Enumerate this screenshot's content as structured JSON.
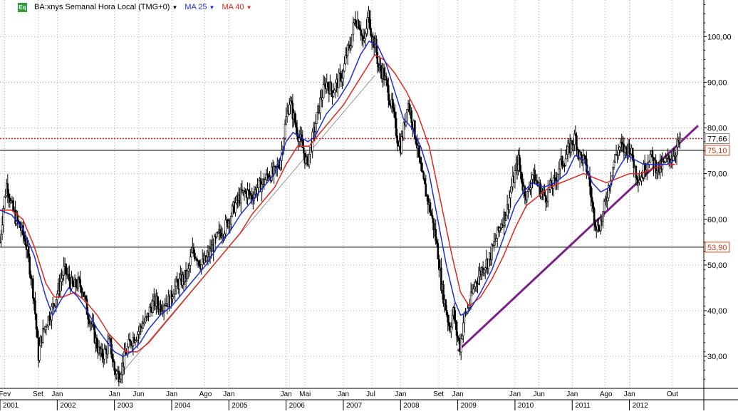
{
  "chart_data": {
    "type": "candlestick",
    "title": "BA:xnys Semanal Hora Local (TMG+0)",
    "indicators": [
      {
        "name": "MA 25",
        "color": "#1f2fd6"
      },
      {
        "name": "MA 40",
        "color": "#e0261e"
      }
    ],
    "colors": {
      "price": "#000000",
      "ma25": "#1f2fd6",
      "ma40": "#e0261e",
      "trendline": "#7b1e8c",
      "dotted_level": "#c21c1c"
    },
    "ylim": [
      23,
      108
    ],
    "y_ticks": [
      "30,00",
      "40,00",
      "50,00",
      "60,00",
      "70,00",
      "80,00",
      "90,00",
      "100,00"
    ],
    "y_tick_values": [
      30,
      40,
      50,
      60,
      70,
      80,
      90,
      100
    ],
    "month_labels": [
      {
        "label": "Fev",
        "t": 2001.08
      },
      {
        "label": "Set",
        "t": 2001.67
      },
      {
        "label": "Jan",
        "t": 2002.0
      },
      {
        "label": "Jan",
        "t": 2003.0
      },
      {
        "label": "Jun",
        "t": 2003.42
      },
      {
        "label": "Jan",
        "t": 2004.0
      },
      {
        "label": "Ago",
        "t": 2004.58
      },
      {
        "label": "Jan",
        "t": 2005.0
      },
      {
        "label": "Jan",
        "t": 2006.0
      },
      {
        "label": "Mai",
        "t": 2006.33
      },
      {
        "label": "Jan",
        "t": 2007.0
      },
      {
        "label": "Jul",
        "t": 2007.5
      },
      {
        "label": "Jan",
        "t": 2008.0
      },
      {
        "label": "Set",
        "t": 2008.67
      },
      {
        "label": "Jan",
        "t": 2009.0
      },
      {
        "label": "Jan",
        "t": 2010.0
      },
      {
        "label": "Jun",
        "t": 2010.42
      },
      {
        "label": "Jan",
        "t": 2011.0
      },
      {
        "label": "Ago",
        "t": 2011.58
      },
      {
        "label": "Jan",
        "t": 2012.0
      },
      {
        "label": "Out",
        "t": 2012.75
      }
    ],
    "year_labels": [
      "2001",
      "2002",
      "2003",
      "2004",
      "2005",
      "2006",
      "2007",
      "2008",
      "2009",
      "2010",
      "2011",
      "2012"
    ],
    "horizontal_levels": [
      {
        "value": 77.66,
        "label": "77,66",
        "style": "dotted"
      },
      {
        "value": 75.1,
        "label": "75,10",
        "style": "solid"
      },
      {
        "value": 53.9,
        "label": "53,90",
        "style": "solid"
      }
    ],
    "last_price": {
      "value": 77.66,
      "label": "77,66"
    },
    "trendlines": [
      {
        "from": {
          "t": 2009.0,
          "y": 31.2
        },
        "to": {
          "t": 2013.2,
          "y": 80.5
        },
        "color": "#7b1e8c"
      },
      {
        "from": {
          "t": 2003.0,
          "y": 24.5
        },
        "to": {
          "t": 2007.55,
          "y": 91.5
        },
        "color": "#808080"
      }
    ],
    "price_path": [
      [
        2001.0,
        55
      ],
      [
        2001.06,
        63
      ],
      [
        2001.12,
        68
      ],
      [
        2001.2,
        63
      ],
      [
        2001.28,
        60
      ],
      [
        2001.36,
        58
      ],
      [
        2001.45,
        55
      ],
      [
        2001.55,
        47
      ],
      [
        2001.6,
        42
      ],
      [
        2001.67,
        30
      ],
      [
        2001.72,
        34
      ],
      [
        2001.8,
        37
      ],
      [
        2001.9,
        40
      ],
      [
        2001.98,
        43
      ],
      [
        2002.05,
        46
      ],
      [
        2002.12,
        49
      ],
      [
        2002.2,
        47
      ],
      [
        2002.28,
        45
      ],
      [
        2002.36,
        46
      ],
      [
        2002.44,
        45
      ],
      [
        2002.52,
        40
      ],
      [
        2002.6,
        37
      ],
      [
        2002.68,
        33
      ],
      [
        2002.76,
        30
      ],
      [
        2002.84,
        31
      ],
      [
        2002.92,
        33
      ],
      [
        2003.0,
        27
      ],
      [
        2003.08,
        26
      ],
      [
        2003.16,
        29
      ],
      [
        2003.24,
        32
      ],
      [
        2003.32,
        34
      ],
      [
        2003.4,
        35
      ],
      [
        2003.48,
        37
      ],
      [
        2003.56,
        38
      ],
      [
        2003.64,
        41
      ],
      [
        2003.72,
        42
      ],
      [
        2003.8,
        41
      ],
      [
        2003.88,
        42
      ],
      [
        2003.96,
        42
      ],
      [
        2004.04,
        45
      ],
      [
        2004.12,
        46
      ],
      [
        2004.2,
        47
      ],
      [
        2004.28,
        48
      ],
      [
        2004.36,
        53
      ],
      [
        2004.44,
        52
      ],
      [
        2004.52,
        50
      ],
      [
        2004.6,
        51
      ],
      [
        2004.68,
        53
      ],
      [
        2004.76,
        55
      ],
      [
        2004.84,
        57
      ],
      [
        2004.92,
        58
      ],
      [
        2005.0,
        60
      ],
      [
        2005.1,
        63
      ],
      [
        2005.2,
        65
      ],
      [
        2005.3,
        66
      ],
      [
        2005.4,
        65
      ],
      [
        2005.5,
        67
      ],
      [
        2005.6,
        68
      ],
      [
        2005.7,
        70
      ],
      [
        2005.8,
        70
      ],
      [
        2005.9,
        73
      ],
      [
        2006.0,
        82
      ],
      [
        2006.06,
        86
      ],
      [
        2006.12,
        83
      ],
      [
        2006.2,
        79
      ],
      [
        2006.28,
        76
      ],
      [
        2006.36,
        72
      ],
      [
        2006.42,
        75
      ],
      [
        2006.5,
        80
      ],
      [
        2006.6,
        86
      ],
      [
        2006.7,
        90
      ],
      [
        2006.8,
        88
      ],
      [
        2006.9,
        90
      ],
      [
        2007.0,
        92
      ],
      [
        2007.05,
        96
      ],
      [
        2007.12,
        98
      ],
      [
        2007.2,
        104
      ],
      [
        2007.28,
        103
      ],
      [
        2007.36,
        98
      ],
      [
        2007.44,
        105
      ],
      [
        2007.5,
        100
      ],
      [
        2007.56,
        98
      ],
      [
        2007.62,
        93
      ],
      [
        2007.7,
        92
      ],
      [
        2007.78,
        88
      ],
      [
        2007.86,
        84
      ],
      [
        2007.94,
        78
      ],
      [
        2008.0,
        76
      ],
      [
        2008.06,
        80
      ],
      [
        2008.12,
        86
      ],
      [
        2008.2,
        82
      ],
      [
        2008.28,
        77
      ],
      [
        2008.36,
        70
      ],
      [
        2008.44,
        66
      ],
      [
        2008.52,
        62
      ],
      [
        2008.6,
        57
      ],
      [
        2008.66,
        52
      ],
      [
        2008.72,
        45
      ],
      [
        2008.8,
        40
      ],
      [
        2008.86,
        36
      ],
      [
        2008.92,
        40
      ],
      [
        2008.98,
        35
      ],
      [
        2009.04,
        32
      ],
      [
        2009.1,
        38
      ],
      [
        2009.16,
        40
      ],
      [
        2009.22,
        42
      ],
      [
        2009.3,
        46
      ],
      [
        2009.38,
        48
      ],
      [
        2009.46,
        50
      ],
      [
        2009.54,
        51
      ],
      [
        2009.62,
        54
      ],
      [
        2009.7,
        57
      ],
      [
        2009.78,
        60
      ],
      [
        2009.86,
        62
      ],
      [
        2009.94,
        67
      ],
      [
        2010.0,
        70
      ],
      [
        2010.06,
        73
      ],
      [
        2010.14,
        67
      ],
      [
        2010.22,
        65
      ],
      [
        2010.3,
        70
      ],
      [
        2010.38,
        68
      ],
      [
        2010.46,
        66
      ],
      [
        2010.54,
        65
      ],
      [
        2010.62,
        67
      ],
      [
        2010.7,
        68
      ],
      [
        2010.78,
        72
      ],
      [
        2010.86,
        73
      ],
      [
        2010.94,
        75
      ],
      [
        2011.0,
        77
      ],
      [
        2011.06,
        78
      ],
      [
        2011.12,
        74
      ],
      [
        2011.2,
        73
      ],
      [
        2011.28,
        70
      ],
      [
        2011.36,
        62
      ],
      [
        2011.44,
        58
      ],
      [
        2011.52,
        60
      ],
      [
        2011.6,
        65
      ],
      [
        2011.68,
        70
      ],
      [
        2011.76,
        74
      ],
      [
        2011.84,
        76
      ],
      [
        2011.92,
        75
      ],
      [
        2012.0,
        76
      ],
      [
        2012.06,
        73
      ],
      [
        2012.12,
        70
      ],
      [
        2012.2,
        69
      ],
      [
        2012.28,
        72
      ],
      [
        2012.36,
        74
      ],
      [
        2012.44,
        72
      ],
      [
        2012.52,
        71
      ],
      [
        2012.6,
        72
      ],
      [
        2012.68,
        73
      ],
      [
        2012.76,
        74
      ],
      [
        2012.84,
        76
      ],
      [
        2012.9,
        77.66
      ]
    ],
    "ma25_path": [
      [
        2001.0,
        62
      ],
      [
        2001.2,
        61
      ],
      [
        2001.4,
        58
      ],
      [
        2001.6,
        52
      ],
      [
        2001.8,
        43
      ],
      [
        2001.92,
        39
      ],
      [
        2002.05,
        42
      ],
      [
        2002.2,
        45
      ],
      [
        2002.36,
        43
      ],
      [
        2002.52,
        40
      ],
      [
        2002.7,
        36
      ],
      [
        2002.88,
        33
      ],
      [
        2003.0,
        31
      ],
      [
        2003.15,
        30
      ],
      [
        2003.3,
        31
      ],
      [
        2003.45,
        33
      ],
      [
        2003.6,
        36
      ],
      [
        2003.8,
        39
      ],
      [
        2004.0,
        41
      ],
      [
        2004.2,
        44
      ],
      [
        2004.4,
        47
      ],
      [
        2004.6,
        50
      ],
      [
        2004.8,
        54
      ],
      [
        2005.0,
        57
      ],
      [
        2005.2,
        61
      ],
      [
        2005.4,
        64
      ],
      [
        2005.6,
        67
      ],
      [
        2005.8,
        70
      ],
      [
        2006.0,
        77
      ],
      [
        2006.12,
        79
      ],
      [
        2006.25,
        78
      ],
      [
        2006.38,
        77
      ],
      [
        2006.5,
        78
      ],
      [
        2006.7,
        83
      ],
      [
        2006.9,
        86
      ],
      [
        2007.1,
        90
      ],
      [
        2007.3,
        96
      ],
      [
        2007.45,
        99
      ],
      [
        2007.6,
        98
      ],
      [
        2007.75,
        94
      ],
      [
        2007.9,
        88
      ],
      [
        2008.05,
        82
      ],
      [
        2008.2,
        80
      ],
      [
        2008.35,
        76
      ],
      [
        2008.5,
        70
      ],
      [
        2008.65,
        60
      ],
      [
        2008.8,
        50
      ],
      [
        2008.95,
        42
      ],
      [
        2009.05,
        39
      ],
      [
        2009.2,
        40
      ],
      [
        2009.4,
        44
      ],
      [
        2009.6,
        49
      ],
      [
        2009.8,
        56
      ],
      [
        2010.0,
        63
      ],
      [
        2010.15,
        66
      ],
      [
        2010.3,
        68
      ],
      [
        2010.5,
        67
      ],
      [
        2010.7,
        68
      ],
      [
        2010.9,
        70
      ],
      [
        2011.05,
        74
      ],
      [
        2011.2,
        73
      ],
      [
        2011.35,
        68
      ],
      [
        2011.5,
        66
      ],
      [
        2011.65,
        67
      ],
      [
        2011.8,
        71
      ],
      [
        2011.95,
        74
      ],
      [
        2012.1,
        73
      ],
      [
        2012.25,
        72
      ],
      [
        2012.45,
        72
      ],
      [
        2012.65,
        72
      ],
      [
        2012.8,
        73
      ]
    ],
    "ma40_path": [
      [
        2001.0,
        62
      ],
      [
        2001.2,
        62
      ],
      [
        2001.4,
        60
      ],
      [
        2001.6,
        54
      ],
      [
        2001.8,
        46
      ],
      [
        2001.95,
        43
      ],
      [
        2002.1,
        43
      ],
      [
        2002.3,
        44
      ],
      [
        2002.5,
        42
      ],
      [
        2002.7,
        39
      ],
      [
        2002.9,
        35
      ],
      [
        2003.05,
        33
      ],
      [
        2003.2,
        31
      ],
      [
        2003.4,
        31
      ],
      [
        2003.6,
        33
      ],
      [
        2003.8,
        36
      ],
      [
        2004.0,
        39
      ],
      [
        2004.2,
        42
      ],
      [
        2004.4,
        45
      ],
      [
        2004.6,
        48
      ],
      [
        2004.8,
        51
      ],
      [
        2005.0,
        54
      ],
      [
        2005.2,
        57
      ],
      [
        2005.4,
        61
      ],
      [
        2005.6,
        64
      ],
      [
        2005.8,
        67
      ],
      [
        2006.0,
        72
      ],
      [
        2006.2,
        76
      ],
      [
        2006.4,
        76
      ],
      [
        2006.6,
        79
      ],
      [
        2006.8,
        82
      ],
      [
        2007.0,
        85
      ],
      [
        2007.2,
        89
      ],
      [
        2007.4,
        93
      ],
      [
        2007.55,
        96
      ],
      [
        2007.7,
        95
      ],
      [
        2007.9,
        92
      ],
      [
        2008.1,
        88
      ],
      [
        2008.3,
        83
      ],
      [
        2008.5,
        76
      ],
      [
        2008.7,
        64
      ],
      [
        2008.9,
        52
      ],
      [
        2009.05,
        44
      ],
      [
        2009.2,
        41
      ],
      [
        2009.4,
        43
      ],
      [
        2009.6,
        47
      ],
      [
        2009.8,
        52
      ],
      [
        2010.0,
        58
      ],
      [
        2010.2,
        63
      ],
      [
        2010.4,
        65
      ],
      [
        2010.6,
        67
      ],
      [
        2010.8,
        68
      ],
      [
        2011.0,
        69
      ],
      [
        2011.2,
        70
      ],
      [
        2011.4,
        69
      ],
      [
        2011.6,
        68
      ],
      [
        2011.8,
        69
      ],
      [
        2012.0,
        70
      ],
      [
        2012.2,
        70
      ],
      [
        2012.4,
        71
      ],
      [
        2012.6,
        72
      ],
      [
        2012.8,
        72
      ]
    ]
  }
}
